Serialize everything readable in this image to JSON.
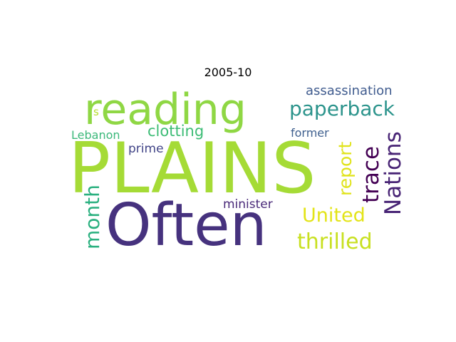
{
  "title": "2005-10",
  "words": [
    {
      "text": "PLAINS",
      "color": "#a5db36"
    },
    {
      "text": "Often",
      "color": "#46327e"
    },
    {
      "text": "reading",
      "color": "#8fd744"
    },
    {
      "text": "paperback",
      "color": "#2c948c"
    },
    {
      "text": "assassination",
      "color": "#3f5b8e"
    },
    {
      "text": "clotting",
      "color": "#3cbc75"
    },
    {
      "text": "Lebanon",
      "color": "#3bb87a"
    },
    {
      "text": "prime",
      "color": "#414487"
    },
    {
      "text": "former",
      "color": "#3e5f8e"
    },
    {
      "text": "minister",
      "color": "#482878"
    },
    {
      "text": "United",
      "color": "#e3e418"
    },
    {
      "text": "thrilled",
      "color": "#c8e020"
    },
    {
      "text": "s",
      "color": "#b5de2b"
    },
    {
      "text": "month",
      "color": "#2ab07f"
    },
    {
      "text": "report",
      "color": "#e0e31b"
    },
    {
      "text": "trace",
      "color": "#440154"
    },
    {
      "text": "Nations",
      "color": "#482475"
    }
  ]
}
